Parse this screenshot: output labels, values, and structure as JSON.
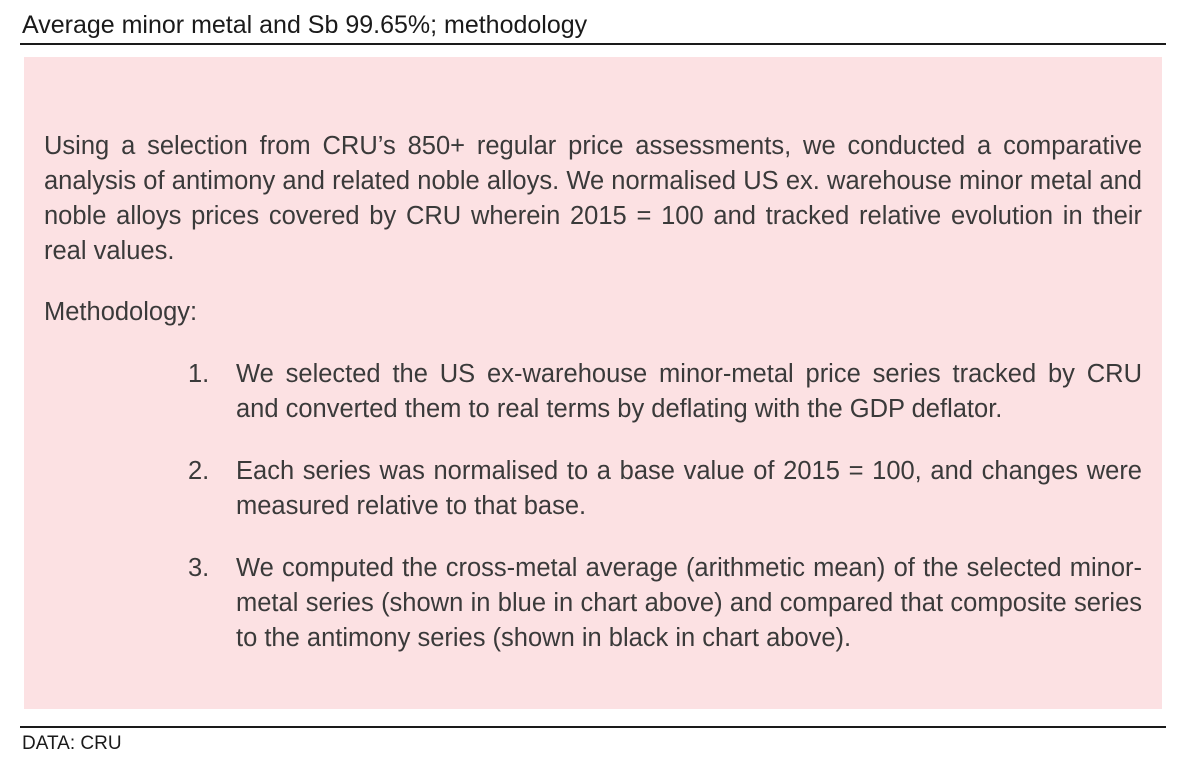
{
  "header": {
    "title": "Average minor metal and Sb 99.65%; methodology"
  },
  "panel": {
    "background_color": "#fce1e3",
    "intro": "Using a selection from CRU’s 850+ regular price assessments, we conducted a comparative analysis of antimony and related noble alloys. We normalised US ex. warehouse minor metal and noble alloys prices covered by CRU wherein 2015 = 100 and tracked relative evolution in their real values.",
    "methodology_heading": "Methodology:",
    "steps": [
      {
        "number": "1.",
        "text": "We selected the US ex-warehouse minor-metal price series tracked by CRU and converted them to real terms by deflating with the GDP deflator."
      },
      {
        "number": "2.",
        "text": "Each series was normalised to a base value of 2015 = 100, and changes were measured relative to that base."
      },
      {
        "number": "3.",
        "text": "We computed the cross-metal average (arithmetic mean) of the selected minor-metal series (shown in blue in chart above) and compared that composite series to the antimony series (shown in black in chart above)."
      }
    ]
  },
  "footer": {
    "source": "DATA: CRU"
  }
}
